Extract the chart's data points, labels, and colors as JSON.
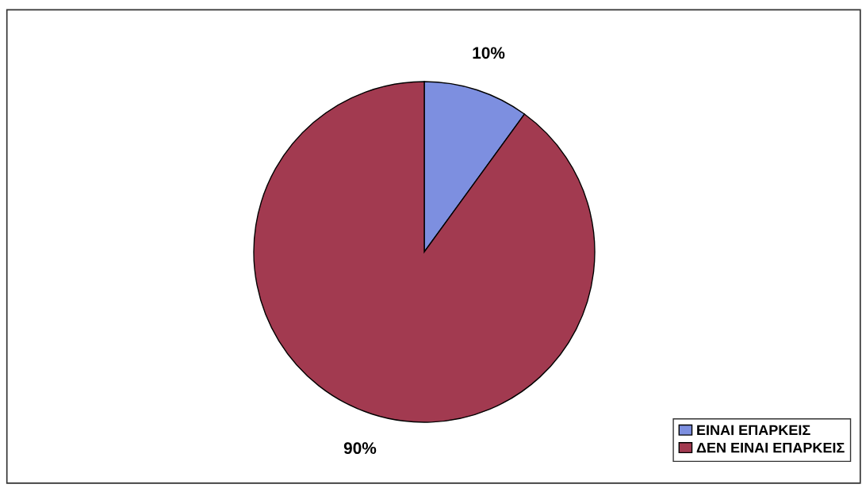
{
  "chart_data": {
    "type": "pie",
    "categories": [
      "ΕΙΝΑΙ ΕΠΑΡΚΕΙΣ",
      "ΔΕΝ ΕΙΝΑΙ ΕΠΑΡΚΕΙΣ"
    ],
    "values": [
      10,
      90
    ],
    "colors": [
      "#7d8fe0",
      "#a23a50"
    ],
    "value_labels": [
      "10%",
      "90%"
    ],
    "legend": "bottom right"
  }
}
